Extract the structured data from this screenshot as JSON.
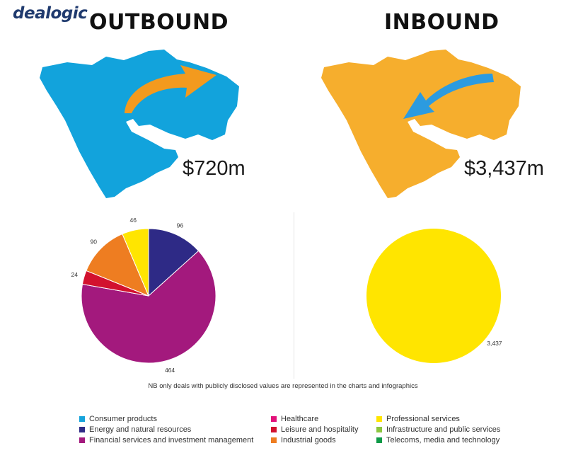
{
  "logo": "dealogic",
  "outbound": {
    "heading": "OUTBOUND",
    "total": "$720m",
    "map_color": "#12a3dc",
    "arrow_color": "#f39a1e"
  },
  "inbound": {
    "heading": "INBOUND",
    "total": "$3,437m",
    "map_color": "#f6ae2d",
    "arrow_color": "#2c9be0"
  },
  "note": "NB only deals with publicly disclosed values are represented in the charts and infographics",
  "legend": [
    {
      "label": "Consumer products",
      "color": "#16a3db"
    },
    {
      "label": "Energy and natural resources",
      "color": "#2e2a86"
    },
    {
      "label": "Financial services and investment management",
      "color": "#a3197d"
    },
    {
      "label": "Healthcare",
      "color": "#e2127a"
    },
    {
      "label": "Leisure and hospitality",
      "color": "#d2122e"
    },
    {
      "label": "Industrial goods",
      "color": "#ee7d21"
    },
    {
      "label": "Professional services",
      "color": "#ffe500"
    },
    {
      "label": "Infrastructure and public services",
      "color": "#8cc63f"
    },
    {
      "label": "Telecoms, media and technology",
      "color": "#0f9a48"
    }
  ],
  "chart_data": [
    {
      "type": "pie",
      "title": "OUTBOUND",
      "total": 720,
      "slices": [
        {
          "category": "Energy and natural resources",
          "value": 96,
          "label": "96",
          "color": "#2e2a86"
        },
        {
          "category": "Financial services and investment management",
          "value": 464,
          "label": "464",
          "color": "#a3197d"
        },
        {
          "category": "Leisure and hospitality",
          "value": 24,
          "label": "24",
          "color": "#d2122e"
        },
        {
          "category": "Industrial goods",
          "value": 90,
          "label": "90",
          "color": "#ee7d21"
        },
        {
          "category": "Professional services",
          "value": 46,
          "label": "46",
          "color": "#ffe500"
        }
      ]
    },
    {
      "type": "pie",
      "title": "INBOUND",
      "total": 3437,
      "slices": [
        {
          "category": "Professional services",
          "value": 3437,
          "label": "3,437",
          "color": "#ffe500"
        }
      ]
    }
  ]
}
